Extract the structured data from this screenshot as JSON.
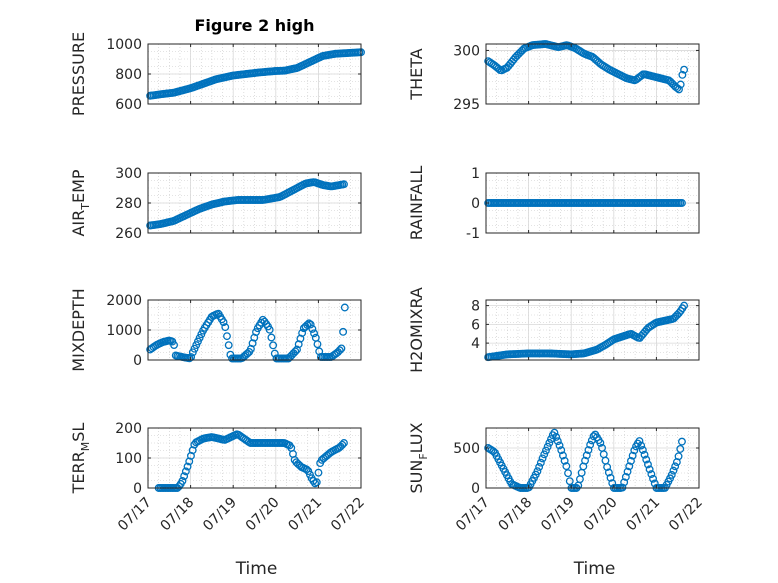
{
  "figure": {
    "title": "Figure 2 high",
    "marker_color": "#0072BD"
  },
  "x_axis": {
    "label": "Time",
    "ticks": [
      "07/17",
      "07/18",
      "07/19",
      "07/20",
      "07/21",
      "07/22"
    ]
  },
  "chart_data": [
    {
      "type": "scatter",
      "name": "PRESSURE",
      "title": "Figure 2 high",
      "ylabel_parts": [
        "PRESSURE"
      ],
      "xlim": [
        0,
        5
      ],
      "ylim": [
        600,
        1000
      ],
      "yticks": [
        600,
        800,
        1000
      ],
      "grid": true,
      "anchors": [
        [
          0.05,
          655
        ],
        [
          0.3,
          665
        ],
        [
          0.6,
          675
        ],
        [
          1.0,
          705
        ],
        [
          1.3,
          735
        ],
        [
          1.6,
          765
        ],
        [
          2.0,
          790
        ],
        [
          2.3,
          800
        ],
        [
          2.6,
          810
        ],
        [
          3.0,
          820
        ],
        [
          3.2,
          822
        ],
        [
          3.5,
          840
        ],
        [
          3.8,
          880
        ],
        [
          4.1,
          920
        ],
        [
          4.4,
          935
        ],
        [
          4.7,
          940
        ],
        [
          5.0,
          945
        ]
      ]
    },
    {
      "type": "scatter",
      "name": "THETA",
      "ylabel_parts": [
        "THETA"
      ],
      "xlim": [
        0,
        5
      ],
      "ylim": [
        295,
        300.6
      ],
      "yticks": [
        295,
        300
      ],
      "grid": true,
      "anchors": [
        [
          0.05,
          299
        ],
        [
          0.2,
          298.6
        ],
        [
          0.35,
          298.1
        ],
        [
          0.5,
          298.4
        ],
        [
          0.7,
          299.4
        ],
        [
          0.9,
          300.2
        ],
        [
          1.1,
          300.5
        ],
        [
          1.4,
          300.6
        ],
        [
          1.7,
          300.3
        ],
        [
          1.9,
          300.5
        ],
        [
          2.1,
          300.2
        ],
        [
          2.3,
          299.7
        ],
        [
          2.5,
          299.4
        ],
        [
          2.7,
          298.7
        ],
        [
          2.9,
          298.2
        ],
        [
          3.1,
          297.8
        ],
        [
          3.3,
          297.4
        ],
        [
          3.5,
          297.2
        ],
        [
          3.7,
          297.8
        ],
        [
          3.9,
          297.6
        ],
        [
          4.1,
          297.4
        ],
        [
          4.3,
          297.2
        ],
        [
          4.45,
          296.6
        ],
        [
          4.55,
          296.3
        ],
        [
          4.6,
          297.6
        ],
        [
          4.65,
          298.2
        ]
      ]
    },
    {
      "type": "scatter",
      "name": "AIR_TEMP",
      "ylabel_parts": [
        "AIR",
        "T",
        "EMP"
      ],
      "xlim": [
        0,
        5
      ],
      "ylim": [
        260,
        300
      ],
      "yticks": [
        260,
        280,
        300
      ],
      "grid": true,
      "anchors": [
        [
          0.05,
          265
        ],
        [
          0.3,
          266
        ],
        [
          0.6,
          268
        ],
        [
          0.9,
          272
        ],
        [
          1.2,
          276
        ],
        [
          1.5,
          279
        ],
        [
          1.8,
          281
        ],
        [
          2.1,
          282
        ],
        [
          2.4,
          282
        ],
        [
          2.7,
          282
        ],
        [
          2.9,
          283
        ],
        [
          3.1,
          284
        ],
        [
          3.3,
          287
        ],
        [
          3.5,
          290
        ],
        [
          3.7,
          293
        ],
        [
          3.9,
          294
        ],
        [
          4.1,
          292
        ],
        [
          4.3,
          291
        ],
        [
          4.5,
          292
        ],
        [
          4.6,
          292.5
        ]
      ]
    },
    {
      "type": "scatter",
      "name": "RAINFALL",
      "ylabel_parts": [
        "RAINFALL"
      ],
      "xlim": [
        0,
        5
      ],
      "ylim": [
        -1,
        1
      ],
      "yticks": [
        -1,
        0,
        1
      ],
      "grid": true,
      "anchors": [
        [
          0.05,
          0
        ],
        [
          4.6,
          0
        ]
      ]
    },
    {
      "type": "scatter",
      "name": "MIXDEPTH",
      "ylabel_parts": [
        "MIXDEPTH"
      ],
      "xlim": [
        0,
        5
      ],
      "ylim": [
        0,
        2000
      ],
      "yticks": [
        0,
        1000,
        2000
      ],
      "grid": true,
      "anchors": [
        [
          0.05,
          350
        ],
        [
          0.2,
          500
        ],
        [
          0.35,
          600
        ],
        [
          0.5,
          650
        ],
        [
          0.6,
          600
        ],
        [
          0.65,
          150
        ],
        [
          0.8,
          100
        ],
        [
          1.0,
          50
        ],
        [
          1.05,
          250
        ],
        [
          1.3,
          1000
        ],
        [
          1.5,
          1450
        ],
        [
          1.65,
          1550
        ],
        [
          1.8,
          1200
        ],
        [
          1.9,
          450
        ],
        [
          1.95,
          50
        ],
        [
          2.2,
          50
        ],
        [
          2.4,
          300
        ],
        [
          2.55,
          1000
        ],
        [
          2.7,
          1350
        ],
        [
          2.85,
          1050
        ],
        [
          2.95,
          400
        ],
        [
          3.0,
          50
        ],
        [
          3.3,
          50
        ],
        [
          3.5,
          350
        ],
        [
          3.65,
          1050
        ],
        [
          3.8,
          1250
        ],
        [
          3.95,
          700
        ],
        [
          4.05,
          100
        ],
        [
          4.3,
          100
        ],
        [
          4.45,
          250
        ],
        [
          4.55,
          400
        ],
        [
          4.6,
          1300
        ],
        [
          4.62,
          1750
        ]
      ]
    },
    {
      "type": "scatter",
      "name": "H2OMIXRA",
      "ylabel_parts": [
        "H2OMIXRA"
      ],
      "xlim": [
        0,
        5
      ],
      "ylim": [
        2.2,
        8.6
      ],
      "yticks": [
        4,
        6,
        8
      ],
      "grid": true,
      "anchors": [
        [
          0.05,
          2.5
        ],
        [
          0.5,
          2.8
        ],
        [
          1.0,
          2.9
        ],
        [
          1.5,
          2.9
        ],
        [
          2.0,
          2.8
        ],
        [
          2.3,
          2.9
        ],
        [
          2.6,
          3.3
        ],
        [
          2.8,
          3.8
        ],
        [
          3.0,
          4.4
        ],
        [
          3.2,
          4.7
        ],
        [
          3.4,
          5.0
        ],
        [
          3.6,
          4.5
        ],
        [
          3.8,
          5.6
        ],
        [
          4.0,
          6.2
        ],
        [
          4.2,
          6.4
        ],
        [
          4.4,
          6.6
        ],
        [
          4.55,
          7.3
        ],
        [
          4.65,
          8.0
        ]
      ]
    },
    {
      "type": "scatter",
      "name": "TERR_MSL",
      "ylabel_parts": [
        "TERR",
        "M",
        "SL"
      ],
      "xlim": [
        0,
        5
      ],
      "ylim": [
        0,
        200
      ],
      "yticks": [
        0,
        100,
        200
      ],
      "grid": true,
      "anchors": [
        [
          0.25,
          0
        ],
        [
          0.7,
          0
        ],
        [
          0.8,
          20
        ],
        [
          0.95,
          80
        ],
        [
          1.1,
          150
        ],
        [
          1.3,
          165
        ],
        [
          1.5,
          170
        ],
        [
          1.8,
          160
        ],
        [
          2.1,
          180
        ],
        [
          2.4,
          150
        ],
        [
          2.7,
          150
        ],
        [
          3.0,
          150
        ],
        [
          3.2,
          150
        ],
        [
          3.35,
          140
        ],
        [
          3.45,
          90
        ],
        [
          3.6,
          70
        ],
        [
          3.75,
          60
        ],
        [
          3.85,
          30
        ],
        [
          3.95,
          10
        ],
        [
          4.05,
          90
        ],
        [
          4.3,
          120
        ],
        [
          4.5,
          135
        ],
        [
          4.6,
          150
        ]
      ]
    },
    {
      "type": "scatter",
      "name": "SUN_FLUX",
      "ylabel_parts": [
        "SUN",
        "F",
        "LUX"
      ],
      "xlim": [
        0,
        5
      ],
      "ylim": [
        0,
        750
      ],
      "yticks": [
        0,
        500
      ],
      "grid": true,
      "anchors": [
        [
          0.05,
          500
        ],
        [
          0.2,
          450
        ],
        [
          0.4,
          250
        ],
        [
          0.6,
          50
        ],
        [
          0.8,
          0
        ],
        [
          1.0,
          0
        ],
        [
          1.2,
          200
        ],
        [
          1.35,
          400
        ],
        [
          1.5,
          580
        ],
        [
          1.6,
          700
        ],
        [
          1.75,
          500
        ],
        [
          1.9,
          250
        ],
        [
          2.0,
          0
        ],
        [
          2.15,
          0
        ],
        [
          2.3,
          300
        ],
        [
          2.45,
          550
        ],
        [
          2.55,
          680
        ],
        [
          2.7,
          550
        ],
        [
          2.85,
          250
        ],
        [
          3.0,
          0
        ],
        [
          3.2,
          0
        ],
        [
          3.35,
          250
        ],
        [
          3.5,
          500
        ],
        [
          3.6,
          590
        ],
        [
          3.7,
          450
        ],
        [
          3.85,
          220
        ],
        [
          4.0,
          0
        ],
        [
          4.2,
          0
        ],
        [
          4.35,
          150
        ],
        [
          4.5,
          350
        ],
        [
          4.6,
          580
        ]
      ]
    }
  ]
}
